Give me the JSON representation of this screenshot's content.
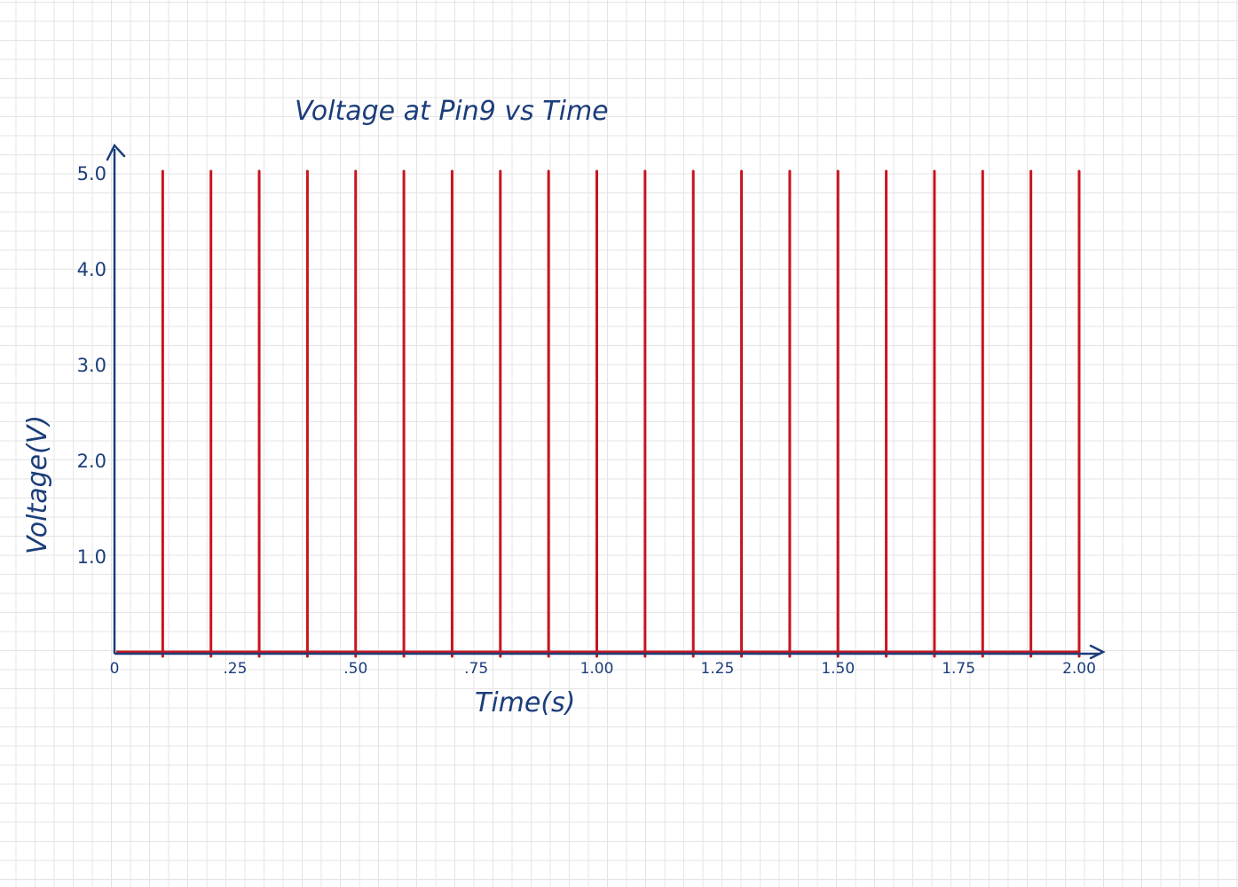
{
  "chart_data": {
    "type": "line",
    "title": "Voltage at Pin9  vs Time",
    "xlabel": "Time(s)",
    "ylabel": "Voltage(V)",
    "x_ticks": [
      {
        "value": 0,
        "label": "0"
      },
      {
        "value": 0.25,
        "label": ".25"
      },
      {
        "value": 0.5,
        "label": ".50"
      },
      {
        "value": 0.75,
        "label": ".75"
      },
      {
        "value": 1.0,
        "label": "1.00"
      },
      {
        "value": 1.25,
        "label": "1.25"
      },
      {
        "value": 1.5,
        "label": "1.50"
      },
      {
        "value": 1.75,
        "label": "1.75"
      },
      {
        "value": 2.0,
        "label": "2.00"
      }
    ],
    "y_ticks": [
      {
        "value": 1.0,
        "label": "1.0"
      },
      {
        "value": 2.0,
        "label": "2.0"
      },
      {
        "value": 3.0,
        "label": "3.0"
      },
      {
        "value": 4.0,
        "label": "4.0"
      },
      {
        "value": 5.0,
        "label": "5.0"
      }
    ],
    "xlim": [
      0,
      2.0
    ],
    "ylim": [
      0,
      5.0
    ],
    "grid": true,
    "series": [
      {
        "color": "#c8141c",
        "spike_times": [
          0.1,
          0.2,
          0.3,
          0.4,
          0.5,
          0.6,
          0.7,
          0.8,
          0.9,
          1.0,
          1.1,
          1.2,
          1.3,
          1.4,
          1.5,
          1.6,
          1.7,
          1.8,
          1.9,
          2.0
        ],
        "baseline": 0,
        "spike_value": 5.0
      }
    ],
    "colors": {
      "axes": "#1b3d7a",
      "signal": "#c8141c"
    }
  }
}
